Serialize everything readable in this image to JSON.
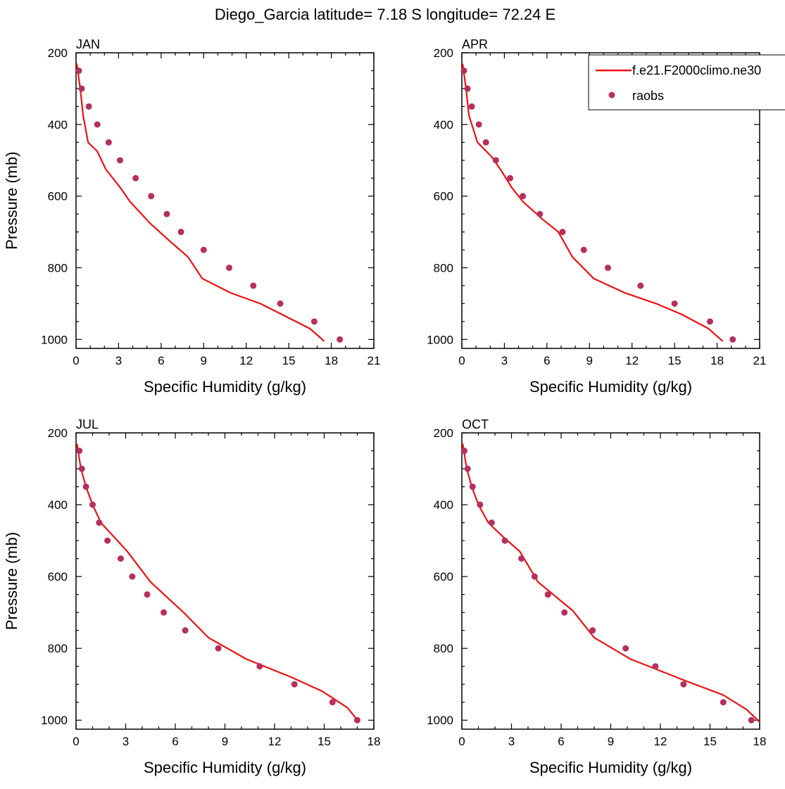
{
  "title": "Diego_Garcia  latitude= 7.18 S longitude= 72.24 E",
  "colors": {
    "model": "#ee1111",
    "raobs": "#b5305e",
    "axis": "#000000"
  },
  "legend": {
    "placement": "top-right",
    "model_label": "f.e21.F2000climo.ne30",
    "raobs_label": "raobs"
  },
  "chart_data": [
    {
      "type": "scatter",
      "panel": "JAN",
      "xlabel": "Specific Humidity (g/kg)",
      "ylabel": "Pressure (mb)",
      "xlim": [
        0,
        21
      ],
      "ylim": [
        200,
        1025
      ],
      "y_inverted": true,
      "xticks": [
        0,
        3,
        6,
        9,
        12,
        15,
        18,
        21
      ],
      "yticks": [
        200,
        400,
        600,
        800,
        1000
      ],
      "series": [
        {
          "name": "f.e21.F2000climo.ne30",
          "kind": "line",
          "x": [
            0.05,
            0.12,
            0.3,
            0.5,
            0.85,
            1.5,
            2.1,
            3.1,
            3.8,
            5.2,
            6.6,
            7.9,
            8.9,
            10.9,
            13.0,
            14.5,
            16.5,
            17.5
          ],
          "y": [
            230,
            250,
            300,
            375,
            450,
            475,
            525,
            575,
            615,
            675,
            725,
            770,
            830,
            870,
            900,
            930,
            970,
            1005
          ]
        },
        {
          "name": "raobs",
          "kind": "markers",
          "x": [
            0.2,
            0.4,
            0.9,
            1.5,
            2.3,
            3.1,
            4.2,
            5.3,
            6.4,
            7.4,
            9.0,
            10.8,
            12.5,
            14.4,
            16.8,
            18.6
          ],
          "y": [
            250,
            300,
            350,
            400,
            450,
            500,
            550,
            600,
            650,
            700,
            750,
            800,
            850,
            900,
            950,
            1000
          ]
        }
      ]
    },
    {
      "type": "scatter",
      "panel": "APR",
      "xlabel": "Specific Humidity (g/kg)",
      "ylabel": "Pressure (mb)",
      "xlim": [
        0,
        21
      ],
      "ylim": [
        200,
        1025
      ],
      "y_inverted": true,
      "xticks": [
        0,
        3,
        6,
        9,
        12,
        15,
        18,
        21
      ],
      "yticks": [
        200,
        400,
        600,
        800,
        1000
      ],
      "series": [
        {
          "name": "f.e21.F2000climo.ne30",
          "kind": "line",
          "x": [
            0.05,
            0.12,
            0.3,
            0.5,
            1.1,
            2.1,
            2.8,
            3.5,
            4.3,
            5.7,
            6.8,
            7.8,
            9.3,
            11.5,
            13.7,
            15.5,
            17.4,
            18.4
          ],
          "y": [
            230,
            250,
            300,
            375,
            450,
            490,
            530,
            575,
            615,
            665,
            700,
            770,
            830,
            870,
            900,
            930,
            970,
            1005
          ]
        },
        {
          "name": "raobs",
          "kind": "markers",
          "x": [
            0.15,
            0.4,
            0.7,
            1.2,
            1.7,
            2.4,
            3.4,
            4.3,
            5.5,
            7.1,
            8.6,
            10.3,
            12.6,
            15.0,
            17.5,
            19.1
          ],
          "y": [
            250,
            300,
            350,
            400,
            450,
            500,
            550,
            600,
            650,
            700,
            750,
            800,
            850,
            900,
            950,
            1000
          ]
        }
      ]
    },
    {
      "type": "scatter",
      "panel": "JUL",
      "xlabel": "Specific Humidity (g/kg)",
      "ylabel": "Pressure (mb)",
      "xlim": [
        0,
        18
      ],
      "ylim": [
        200,
        1025
      ],
      "y_inverted": true,
      "xticks": [
        0,
        3,
        6,
        9,
        12,
        15,
        18
      ],
      "yticks": [
        200,
        400,
        600,
        800,
        1000
      ],
      "series": [
        {
          "name": "f.e21.F2000climo.ne30",
          "kind": "line",
          "x": [
            0.05,
            0.12,
            0.3,
            0.6,
            1.0,
            1.5,
            2.3,
            3.1,
            4.5,
            6.5,
            8.0,
            10.3,
            13.0,
            14.9,
            16.4,
            17.1
          ],
          "y": [
            230,
            250,
            300,
            350,
            400,
            450,
            490,
            530,
            615,
            700,
            770,
            830,
            880,
            920,
            965,
            1005
          ]
        },
        {
          "name": "raobs",
          "kind": "markers",
          "x": [
            0.2,
            0.35,
            0.6,
            1.0,
            1.4,
            1.9,
            2.7,
            3.4,
            4.3,
            5.3,
            6.6,
            8.6,
            11.1,
            13.2,
            15.5,
            17.0
          ],
          "y": [
            250,
            300,
            350,
            400,
            450,
            500,
            550,
            600,
            650,
            700,
            750,
            800,
            850,
            900,
            950,
            1000
          ]
        }
      ]
    },
    {
      "type": "scatter",
      "panel": "OCT",
      "xlabel": "Specific Humidity (g/kg)",
      "ylabel": "Pressure (mb)",
      "xlim": [
        0,
        18
      ],
      "ylim": [
        200,
        1025
      ],
      "y_inverted": true,
      "xticks": [
        0,
        3,
        6,
        9,
        12,
        15,
        18
      ],
      "yticks": [
        200,
        400,
        600,
        800,
        1000
      ],
      "series": [
        {
          "name": "f.e21.F2000climo.ne30",
          "kind": "line",
          "x": [
            0.05,
            0.12,
            0.3,
            0.6,
            1.0,
            1.6,
            2.5,
            3.5,
            4.6,
            6.7,
            8.0,
            10.2,
            13.5,
            15.8,
            17.2,
            18.0
          ],
          "y": [
            230,
            250,
            300,
            350,
            400,
            450,
            490,
            530,
            615,
            695,
            770,
            830,
            890,
            930,
            970,
            1005
          ]
        },
        {
          "name": "raobs",
          "kind": "markers",
          "x": [
            0.15,
            0.35,
            0.65,
            1.1,
            1.8,
            2.6,
            3.6,
            4.4,
            5.2,
            6.2,
            7.9,
            9.9,
            11.7,
            13.4,
            15.8,
            17.5
          ],
          "y": [
            250,
            300,
            350,
            400,
            450,
            500,
            550,
            600,
            650,
            700,
            750,
            800,
            850,
            900,
            950,
            1000
          ]
        }
      ]
    }
  ]
}
